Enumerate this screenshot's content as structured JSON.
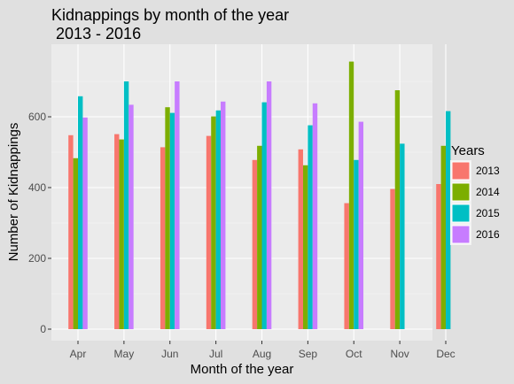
{
  "chart_data": {
    "type": "bar",
    "title_lines": [
      "Kidnappings by month of the year",
      " 2013 - 2016"
    ],
    "xlabel": "Month of the year",
    "ylabel": "Number of Kidnappings",
    "categories": [
      "Apr",
      "May",
      "Jun",
      "Jul",
      "Aug",
      "Sep",
      "Oct",
      "Nov",
      "Dec"
    ],
    "ylim": [
      0,
      780
    ],
    "yticks": [
      0,
      200,
      400,
      600
    ],
    "grid": true,
    "legend": {
      "title": "Years",
      "position": "right"
    },
    "series": [
      {
        "name": "2013",
        "color": "#f8766d",
        "values": [
          548,
          551,
          514,
          546,
          478,
          508,
          356,
          396,
          410
        ]
      },
      {
        "name": "2014",
        "color": "#7cae00",
        "values": [
          483,
          536,
          627,
          601,
          518,
          463,
          756,
          675,
          518
        ]
      },
      {
        "name": "2015",
        "color": "#00bfc4",
        "values": [
          658,
          700,
          611,
          618,
          641,
          576,
          478,
          524,
          616
        ]
      },
      {
        "name": "2016",
        "color": "#c77cff",
        "values": [
          598,
          634,
          700,
          643,
          700,
          638,
          586,
          null,
          null
        ]
      }
    ]
  }
}
